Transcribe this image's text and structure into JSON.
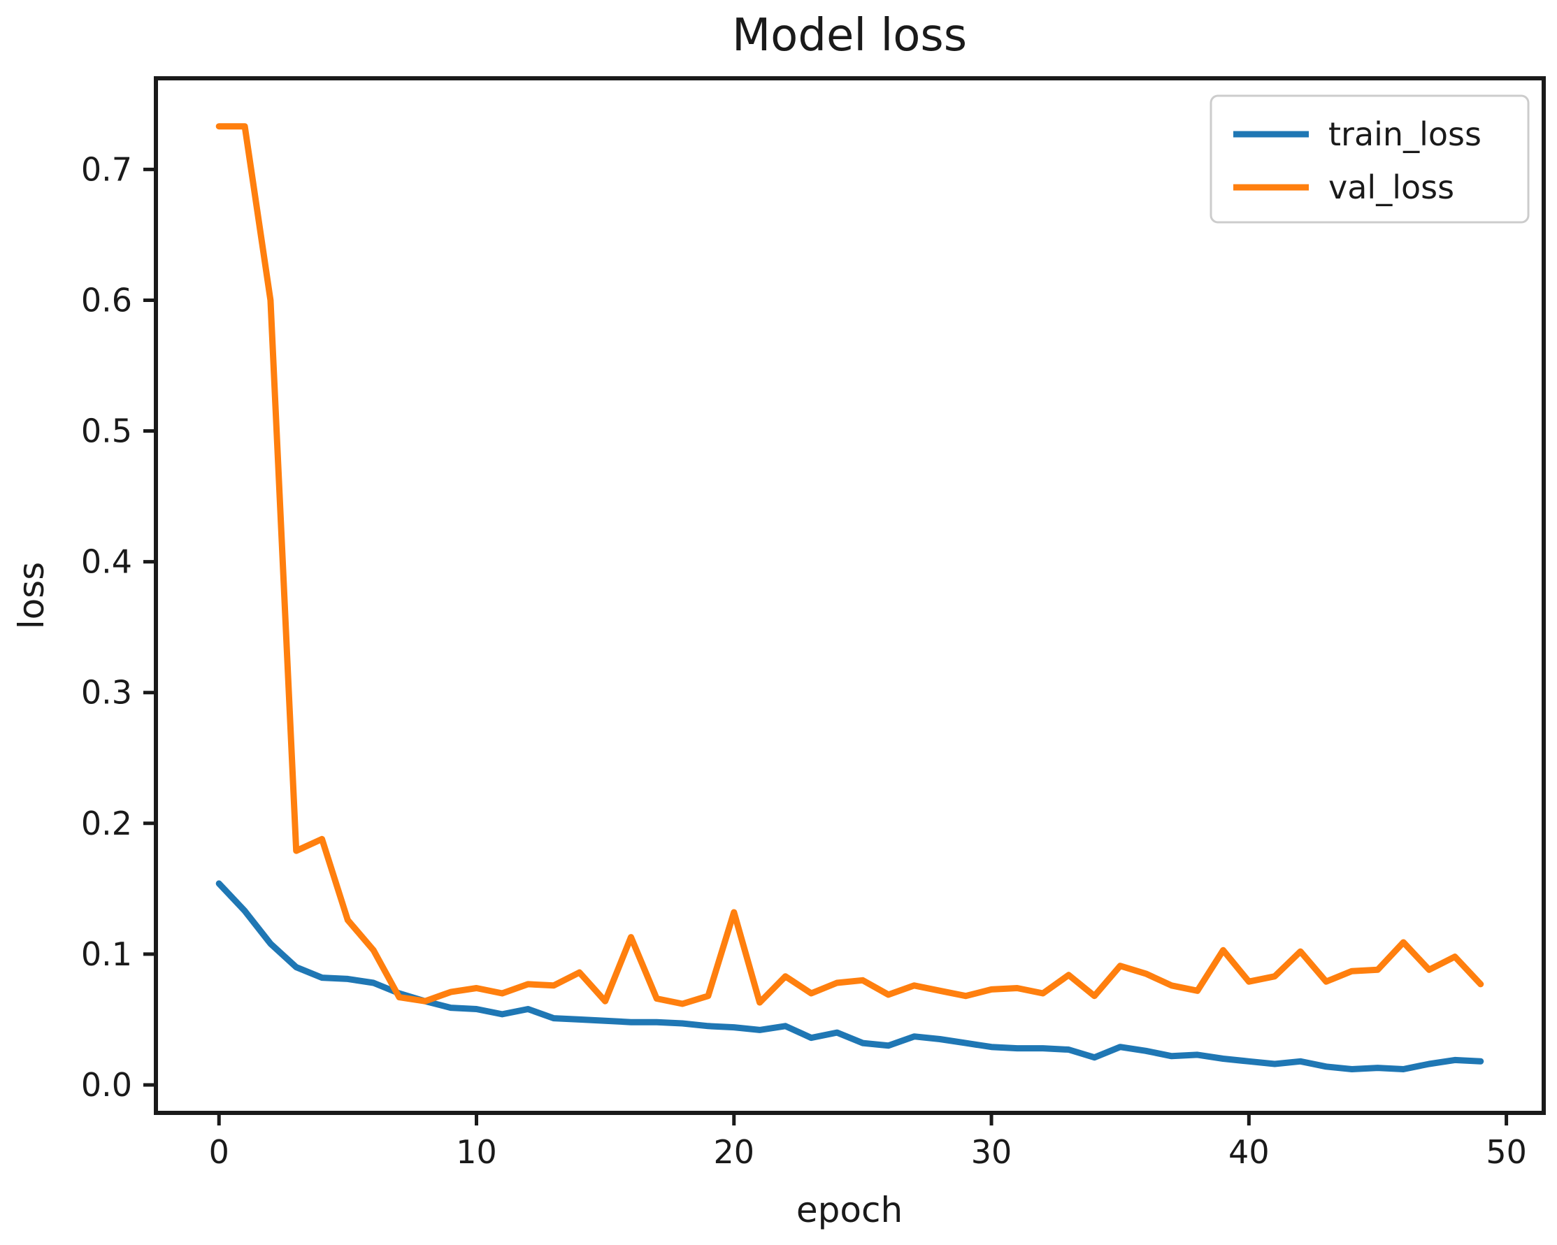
{
  "chart_data": {
    "type": "line",
    "title": "Model loss",
    "xlabel": "epoch",
    "ylabel": "loss",
    "x_ticks": [
      0,
      10,
      20,
      30,
      40,
      50
    ],
    "y_ticks": [
      0.0,
      0.1,
      0.2,
      0.3,
      0.4,
      0.5,
      0.6,
      0.7
    ],
    "xlim": [
      -2.45,
      51.45
    ],
    "ylim": [
      -0.0214,
      0.7697
    ],
    "grid": false,
    "legend_position": "upper right",
    "x": [
      0,
      1,
      2,
      3,
      4,
      5,
      6,
      7,
      8,
      9,
      10,
      11,
      12,
      13,
      14,
      15,
      16,
      17,
      18,
      19,
      20,
      21,
      22,
      23,
      24,
      25,
      26,
      27,
      28,
      29,
      30,
      31,
      32,
      33,
      34,
      35,
      36,
      37,
      38,
      39,
      40,
      41,
      42,
      43,
      44,
      45,
      46,
      47,
      48,
      49
    ],
    "series": [
      {
        "name": "train_loss",
        "color": "#1f77b4",
        "values": [
          0.154,
          0.133,
          0.108,
          0.09,
          0.082,
          0.081,
          0.078,
          0.07,
          0.064,
          0.059,
          0.058,
          0.054,
          0.058,
          0.051,
          0.05,
          0.049,
          0.048,
          0.048,
          0.047,
          0.045,
          0.044,
          0.042,
          0.045,
          0.036,
          0.04,
          0.032,
          0.03,
          0.037,
          0.035,
          0.032,
          0.029,
          0.028,
          0.028,
          0.027,
          0.021,
          0.029,
          0.026,
          0.022,
          0.023,
          0.02,
          0.018,
          0.016,
          0.018,
          0.014,
          0.012,
          0.013,
          0.012,
          0.016,
          0.019,
          0.018
        ]
      },
      {
        "name": "val_loss",
        "color": "#ff7f0e",
        "values": [
          0.733,
          0.733,
          0.6,
          0.179,
          0.188,
          0.126,
          0.103,
          0.067,
          0.064,
          0.071,
          0.074,
          0.07,
          0.077,
          0.076,
          0.086,
          0.064,
          0.113,
          0.066,
          0.062,
          0.068,
          0.132,
          0.063,
          0.083,
          0.07,
          0.078,
          0.08,
          0.069,
          0.076,
          0.072,
          0.068,
          0.073,
          0.074,
          0.07,
          0.084,
          0.068,
          0.091,
          0.085,
          0.076,
          0.072,
          0.103,
          0.079,
          0.083,
          0.102,
          0.079,
          0.087,
          0.088,
          0.109,
          0.088,
          0.098,
          0.077
        ]
      }
    ],
    "colors": {
      "train_loss": "#1f77b4",
      "val_loss": "#ff7f0e",
      "axis": "#1a1a1a",
      "legend_border": "#cccccc",
      "background": "#ffffff"
    }
  }
}
